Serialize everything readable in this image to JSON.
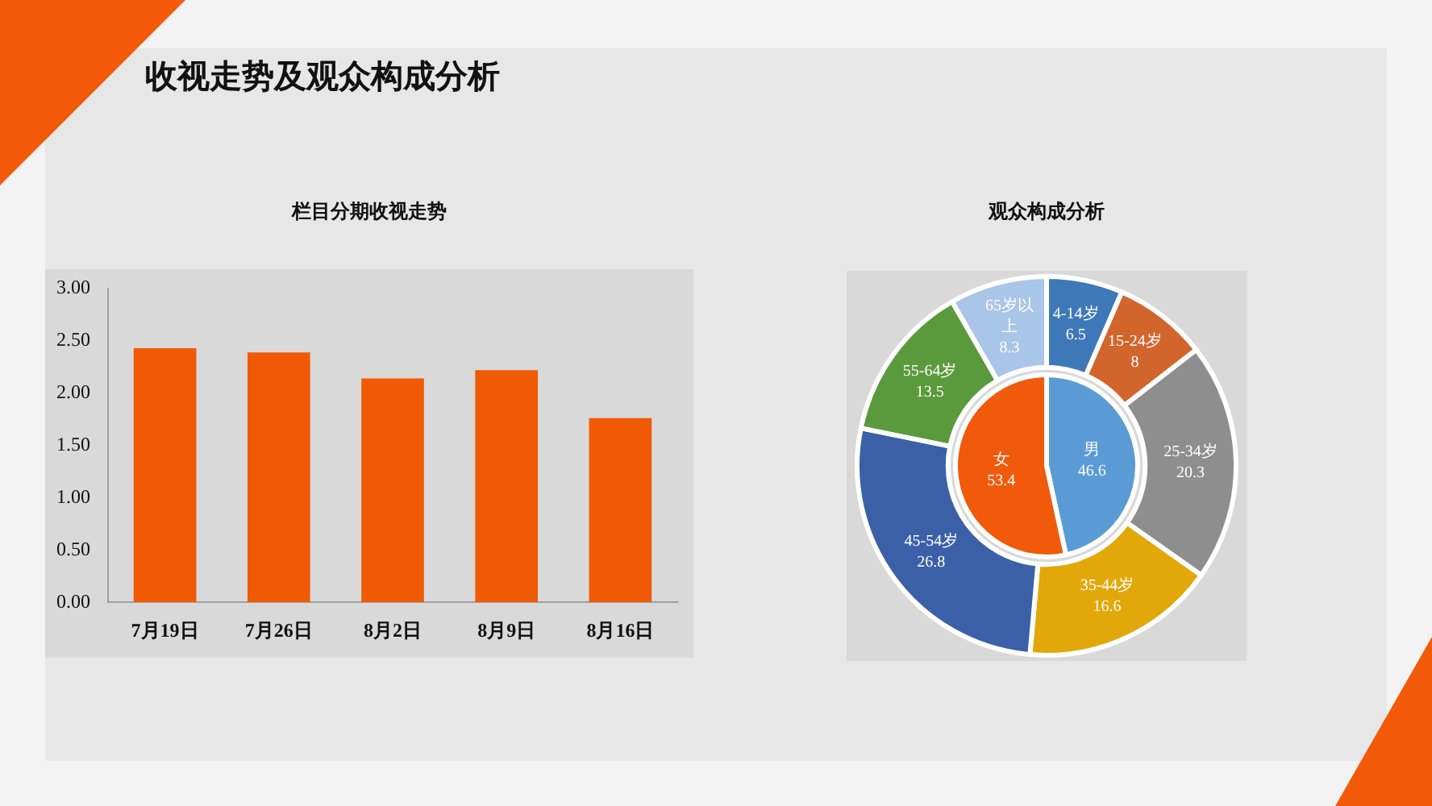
{
  "chart_data": [
    {
      "type": "other",
      "title": "收视走势及观众构成分析"
    },
    {
      "type": "bar",
      "title": "栏目分期收视走势",
      "categories": [
        "7月19日",
        "7月26日",
        "8月2日",
        "8月9日",
        "8月16日"
      ],
      "values": [
        2.43,
        2.39,
        2.14,
        2.22,
        1.76
      ],
      "color": "#f05a05",
      "ylim": [
        0,
        3
      ],
      "yticks": [
        {
          "value": 0,
          "label": "0.00"
        },
        {
          "value": 0.5,
          "label": "0.50"
        },
        {
          "value": 1,
          "label": "1.00"
        },
        {
          "value": 1.5,
          "label": "1.50"
        },
        {
          "value": 2,
          "label": "2.00"
        },
        {
          "value": 2.5,
          "label": "2.50"
        },
        {
          "value": 3,
          "label": "3.00"
        }
      ],
      "grid": false,
      "legend": false
    },
    {
      "type": "donut",
      "title": "观众构成分析",
      "data_labels": true,
      "legend": false,
      "categories": [
        "4-14岁",
        "15-24岁",
        "25-34岁",
        "35-44岁",
        "45-54岁",
        "55-64岁",
        "65岁以上"
      ],
      "values": [
        6.5,
        8,
        20.3,
        16.6,
        26.8,
        13.5,
        8.3
      ],
      "colors": [
        "#3f78b8",
        "#d2652c",
        "#8e8e8e",
        "#e2a80a",
        "#3b60a8",
        "#5a9a3c",
        "#a9c5e8"
      ]
    },
    {
      "type": "pie",
      "data_labels": true,
      "legend": false,
      "categories": [
        "男",
        "女"
      ],
      "values": [
        46.6,
        53.4
      ],
      "colors": [
        "#5b9bd5",
        "#f05a0a"
      ]
    }
  ]
}
